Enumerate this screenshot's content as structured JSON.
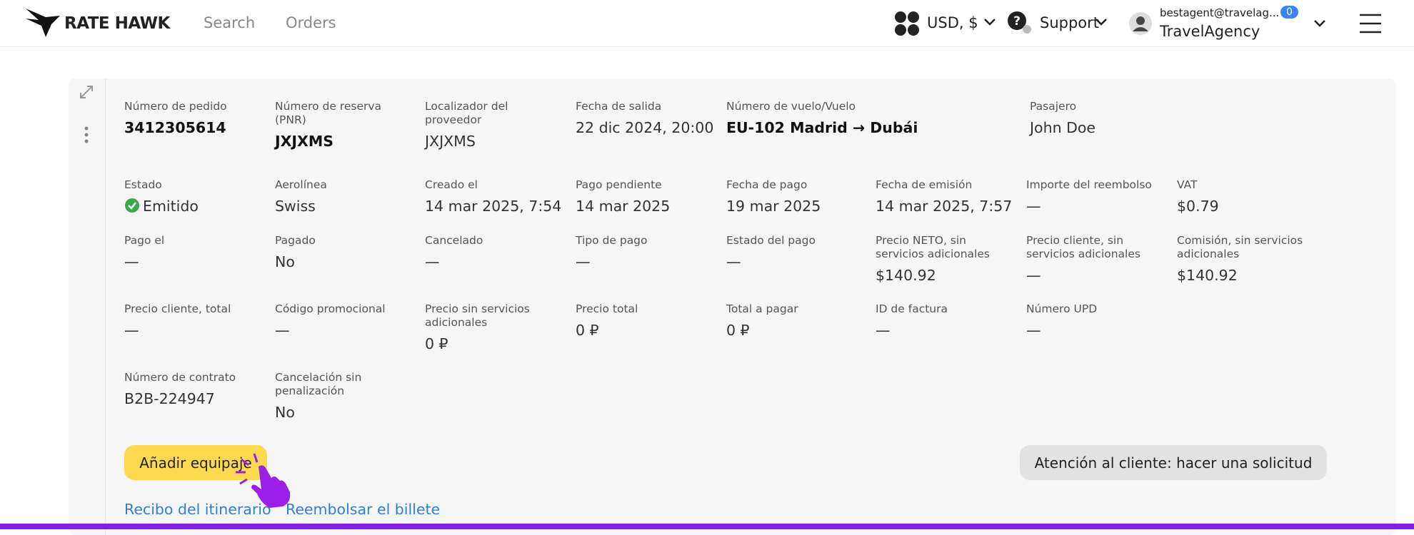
{
  "header": {
    "logo": "RATE HAWK",
    "nav": [
      "Search",
      "Orders"
    ],
    "currency": "USD, $",
    "support": "Support",
    "account": {
      "email": "bestagent@travelag...",
      "badge": "0",
      "company": "TravelAgency"
    }
  },
  "order": {
    "rows": [
      [
        {
          "label": "Número de pedido",
          "value": "3412305614"
        },
        {
          "label": "Número de reserva (PNR)",
          "value": "JXJXMS"
        },
        {
          "label": "Localizador del proveedor",
          "value": "JXJXMS"
        },
        {
          "label": "Fecha de salida",
          "value": "22 dic 2024, 20:00"
        },
        {
          "label": "Número de vuelo/Vuelo",
          "value": "EU-102 Madrid → Dubái"
        },
        {
          "label": "Pasajero",
          "value": "John Doe"
        }
      ],
      [
        {
          "label": "Estado",
          "value": "Emitido"
        },
        {
          "label": "Aerolínea",
          "value": "Swiss"
        },
        {
          "label": "Creado el",
          "value": "14 mar 2025, 7:54"
        },
        {
          "label": "Pago pendiente",
          "value": "14 mar 2025"
        },
        {
          "label": "Fecha de pago",
          "value": "19 mar 2025"
        },
        {
          "label": "Fecha de emisión",
          "value": "14 mar 2025, 7:57"
        },
        {
          "label": "Importe del reembolso",
          "value": "—"
        },
        {
          "label": "VAT",
          "value": "$0.79"
        }
      ],
      [
        {
          "label": "Pago el",
          "value": "—"
        },
        {
          "label": "Pagado",
          "value": "No"
        },
        {
          "label": "Cancelado",
          "value": "—"
        },
        {
          "label": "Tipo de pago",
          "value": "—"
        },
        {
          "label": "Estado del pago",
          "value": "—"
        },
        {
          "label": "Precio NETO, sin servicios adicionales",
          "value": "$140.92"
        },
        {
          "label": "Precio cliente, sin servicios adicionales",
          "value": "—"
        },
        {
          "label": "Comisión, sin servicios adicionales",
          "value": "$140.92"
        }
      ],
      [
        {
          "label": "Precio cliente, total",
          "value": "—"
        },
        {
          "label": "Código promocional",
          "value": "—"
        },
        {
          "label": "Precio sin servicios adicionales",
          "value": "0 ₽"
        },
        {
          "label": "Precio total",
          "value": "0 ₽"
        },
        {
          "label": "Total a pagar",
          "value": "0 ₽"
        },
        {
          "label": "ID de factura",
          "value": "—"
        },
        {
          "label": "Número UPD",
          "value": "—"
        }
      ],
      [
        {
          "label": "Número de contrato",
          "value": "B2B-224947"
        },
        {
          "label": "Cancelación sin penalización",
          "value": "No"
        }
      ]
    ],
    "add_baggage": "Añadir equipaje",
    "support_request": "Atención al cliente: hacer una solicitud",
    "links": [
      "Recibo del itinerario",
      "Reembolsar el billete"
    ]
  }
}
